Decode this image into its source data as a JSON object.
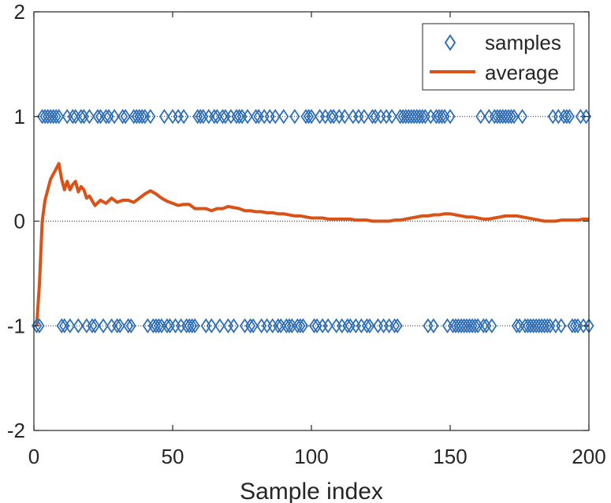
{
  "chart_data": {
    "type": "scatter",
    "title": "",
    "xlabel": "Sample index",
    "ylabel": "",
    "xlim": [
      0,
      200
    ],
    "ylim": [
      -2,
      2
    ],
    "xticks": [
      "0",
      "50",
      "100",
      "150",
      "200"
    ],
    "yticks": [
      "-2",
      "-1",
      "0",
      "1",
      "2"
    ],
    "reference_lines": [
      -1,
      0,
      1
    ],
    "legend": {
      "position": "top-right",
      "entries": [
        "samples",
        "average"
      ]
    },
    "series": [
      {
        "name": "samples",
        "kind": "marker",
        "marker": "diamond",
        "color": "#2e6fb7",
        "points": [
          [
            1,
            -1
          ],
          [
            2,
            -1
          ],
          [
            3,
            1
          ],
          [
            4,
            1
          ],
          [
            5,
            1
          ],
          [
            6,
            1
          ],
          [
            7,
            1
          ],
          [
            8,
            1
          ],
          [
            9,
            1
          ],
          [
            10,
            -1
          ],
          [
            11,
            -1
          ],
          [
            12,
            1
          ],
          [
            13,
            -1
          ],
          [
            14,
            1
          ],
          [
            15,
            1
          ],
          [
            16,
            -1
          ],
          [
            17,
            1
          ],
          [
            18,
            1
          ],
          [
            19,
            -1
          ],
          [
            20,
            1
          ],
          [
            21,
            -1
          ],
          [
            22,
            -1
          ],
          [
            23,
            1
          ],
          [
            24,
            1
          ],
          [
            25,
            -1
          ],
          [
            26,
            1
          ],
          [
            27,
            1
          ],
          [
            28,
            -1
          ],
          [
            29,
            1
          ],
          [
            30,
            -1
          ],
          [
            31,
            -1
          ],
          [
            32,
            1
          ],
          [
            33,
            1
          ],
          [
            34,
            -1
          ],
          [
            35,
            -1
          ],
          [
            36,
            1
          ],
          [
            37,
            1
          ],
          [
            38,
            1
          ],
          [
            39,
            1
          ],
          [
            40,
            1
          ],
          [
            41,
            -1
          ],
          [
            42,
            1
          ],
          [
            43,
            -1
          ],
          [
            44,
            -1
          ],
          [
            45,
            -1
          ],
          [
            46,
            -1
          ],
          [
            47,
            1
          ],
          [
            48,
            -1
          ],
          [
            49,
            -1
          ],
          [
            50,
            1
          ],
          [
            51,
            -1
          ],
          [
            52,
            1
          ],
          [
            53,
            -1
          ],
          [
            54,
            1
          ],
          [
            55,
            -1
          ],
          [
            56,
            -1
          ],
          [
            57,
            -1
          ],
          [
            58,
            -1
          ],
          [
            59,
            1
          ],
          [
            60,
            1
          ],
          [
            61,
            1
          ],
          [
            62,
            -1
          ],
          [
            63,
            1
          ],
          [
            64,
            -1
          ],
          [
            65,
            1
          ],
          [
            66,
            1
          ],
          [
            67,
            -1
          ],
          [
            68,
            1
          ],
          [
            69,
            1
          ],
          [
            70,
            -1
          ],
          [
            71,
            1
          ],
          [
            72,
            -1
          ],
          [
            73,
            1
          ],
          [
            74,
            1
          ],
          [
            75,
            1
          ],
          [
            76,
            -1
          ],
          [
            77,
            1
          ],
          [
            78,
            -1
          ],
          [
            79,
            -1
          ],
          [
            80,
            1
          ],
          [
            81,
            1
          ],
          [
            82,
            -1
          ],
          [
            83,
            1
          ],
          [
            84,
            -1
          ],
          [
            85,
            1
          ],
          [
            86,
            -1
          ],
          [
            87,
            1
          ],
          [
            88,
            -1
          ],
          [
            89,
            -1
          ],
          [
            90,
            1
          ],
          [
            91,
            -1
          ],
          [
            92,
            -1
          ],
          [
            93,
            -1
          ],
          [
            94,
            1
          ],
          [
            95,
            -1
          ],
          [
            96,
            -1
          ],
          [
            97,
            -1
          ],
          [
            98,
            1
          ],
          [
            99,
            1
          ],
          [
            100,
            1
          ],
          [
            101,
            -1
          ],
          [
            102,
            -1
          ],
          [
            103,
            1
          ],
          [
            104,
            -1
          ],
          [
            105,
            1
          ],
          [
            106,
            -1
          ],
          [
            107,
            1
          ],
          [
            108,
            1
          ],
          [
            109,
            -1
          ],
          [
            110,
            1
          ],
          [
            111,
            -1
          ],
          [
            112,
            1
          ],
          [
            113,
            -1
          ],
          [
            114,
            -1
          ],
          [
            115,
            1
          ],
          [
            116,
            -1
          ],
          [
            117,
            1
          ],
          [
            118,
            -1
          ],
          [
            119,
            1
          ],
          [
            120,
            -1
          ],
          [
            121,
            -1
          ],
          [
            122,
            1
          ],
          [
            123,
            1
          ],
          [
            124,
            -1
          ],
          [
            125,
            1
          ],
          [
            126,
            -1
          ],
          [
            127,
            1
          ],
          [
            128,
            -1
          ],
          [
            129,
            1
          ],
          [
            130,
            -1
          ],
          [
            131,
            -1
          ],
          [
            132,
            1
          ],
          [
            133,
            1
          ],
          [
            134,
            1
          ],
          [
            135,
            1
          ],
          [
            136,
            1
          ],
          [
            137,
            1
          ],
          [
            138,
            1
          ],
          [
            139,
            1
          ],
          [
            140,
            1
          ],
          [
            141,
            1
          ],
          [
            142,
            -1
          ],
          [
            143,
            1
          ],
          [
            144,
            -1
          ],
          [
            145,
            1
          ],
          [
            146,
            1
          ],
          [
            147,
            1
          ],
          [
            148,
            1
          ],
          [
            149,
            -1
          ],
          [
            150,
            1
          ],
          [
            151,
            -1
          ],
          [
            152,
            -1
          ],
          [
            153,
            -1
          ],
          [
            154,
            -1
          ],
          [
            155,
            -1
          ],
          [
            156,
            -1
          ],
          [
            157,
            -1
          ],
          [
            158,
            -1
          ],
          [
            159,
            -1
          ],
          [
            160,
            -1
          ],
          [
            161,
            1
          ],
          [
            162,
            -1
          ],
          [
            163,
            -1
          ],
          [
            164,
            1
          ],
          [
            165,
            -1
          ],
          [
            166,
            1
          ],
          [
            167,
            1
          ],
          [
            168,
            1
          ],
          [
            169,
            1
          ],
          [
            170,
            1
          ],
          [
            171,
            1
          ],
          [
            172,
            1
          ],
          [
            173,
            1
          ],
          [
            174,
            -1
          ],
          [
            175,
            -1
          ],
          [
            176,
            1
          ],
          [
            177,
            -1
          ],
          [
            178,
            -1
          ],
          [
            179,
            -1
          ],
          [
            180,
            -1
          ],
          [
            181,
            -1
          ],
          [
            182,
            -1
          ],
          [
            183,
            -1
          ],
          [
            184,
            -1
          ],
          [
            185,
            -1
          ],
          [
            186,
            -1
          ],
          [
            187,
            1
          ],
          [
            188,
            -1
          ],
          [
            189,
            1
          ],
          [
            190,
            -1
          ],
          [
            191,
            1
          ],
          [
            192,
            1
          ],
          [
            193,
            1
          ],
          [
            194,
            -1
          ],
          [
            195,
            -1
          ],
          [
            196,
            -1
          ],
          [
            197,
            1
          ],
          [
            198,
            -1
          ],
          [
            199,
            1
          ],
          [
            200,
            -1
          ]
        ]
      },
      {
        "name": "average",
        "kind": "line",
        "color": "#d95319",
        "x": [
          1,
          2,
          3,
          4,
          5,
          6,
          7,
          8,
          9,
          10,
          11,
          12,
          13,
          14,
          15,
          16,
          17,
          18,
          19,
          20,
          22,
          24,
          26,
          28,
          30,
          32,
          34,
          36,
          38,
          40,
          42,
          44,
          46,
          48,
          50,
          52,
          54,
          56,
          58,
          60,
          62,
          64,
          66,
          68,
          70,
          72,
          74,
          76,
          78,
          80,
          82,
          84,
          86,
          88,
          90,
          92,
          94,
          96,
          98,
          100,
          102,
          104,
          106,
          108,
          110,
          112,
          114,
          116,
          118,
          120,
          122,
          124,
          126,
          128,
          130,
          132,
          134,
          136,
          138,
          140,
          142,
          144,
          146,
          148,
          150,
          152,
          154,
          156,
          158,
          160,
          162,
          164,
          166,
          168,
          170,
          172,
          174,
          176,
          178,
          180,
          182,
          184,
          186,
          188,
          190,
          192,
          194,
          196,
          198,
          200
        ],
        "y": [
          -1.0,
          -0.6,
          0.0,
          0.2,
          0.3,
          0.4,
          0.45,
          0.5,
          0.55,
          0.4,
          0.3,
          0.38,
          0.3,
          0.35,
          0.38,
          0.28,
          0.33,
          0.3,
          0.22,
          0.24,
          0.15,
          0.2,
          0.17,
          0.22,
          0.18,
          0.2,
          0.2,
          0.18,
          0.22,
          0.26,
          0.29,
          0.26,
          0.22,
          0.19,
          0.17,
          0.15,
          0.16,
          0.16,
          0.12,
          0.12,
          0.12,
          0.1,
          0.12,
          0.12,
          0.14,
          0.13,
          0.12,
          0.1,
          0.1,
          0.09,
          0.09,
          0.08,
          0.08,
          0.07,
          0.07,
          0.06,
          0.05,
          0.05,
          0.04,
          0.03,
          0.03,
          0.03,
          0.02,
          0.02,
          0.02,
          0.02,
          0.02,
          0.01,
          0.01,
          0.01,
          0.0,
          0.0,
          0.0,
          0.0,
          0.01,
          0.01,
          0.02,
          0.03,
          0.04,
          0.05,
          0.05,
          0.06,
          0.06,
          0.07,
          0.07,
          0.06,
          0.05,
          0.04,
          0.04,
          0.03,
          0.02,
          0.02,
          0.03,
          0.04,
          0.05,
          0.05,
          0.05,
          0.04,
          0.03,
          0.02,
          0.01,
          0.0,
          0.0,
          0.0,
          0.01,
          0.01,
          0.01,
          0.01,
          0.02,
          0.02
        ]
      }
    ]
  }
}
